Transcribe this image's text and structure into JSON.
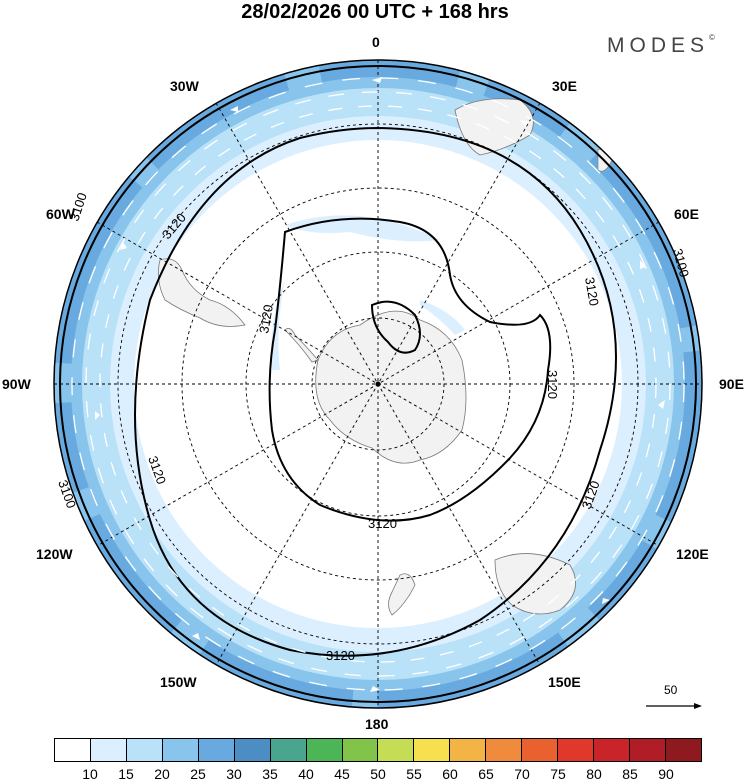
{
  "header": {
    "title": "28/02/2026  00 UTC  + 168 hrs",
    "brand": "MODES",
    "brand_mark": "©"
  },
  "map": {
    "projection": "south-polar-stereographic",
    "longitude_labels": {
      "top": "0",
      "bottom": "180",
      "left": "90W",
      "right": "90E",
      "n30w": "30W",
      "n30e": "30E",
      "n60w": "60W",
      "n60e": "60E",
      "n120w": "120W",
      "n120e": "120E",
      "n150w": "150W",
      "n150e": "150E"
    },
    "contours": {
      "c1": "3100",
      "c2": "3100",
      "c3": "3100",
      "c4": "3120",
      "c5": "3120",
      "c6": "3120",
      "c7": "3120",
      "c8": "3120",
      "c9": "3120",
      "c10": "3120",
      "c11": "3120",
      "c12": "3120"
    },
    "reference_vector": "50",
    "colors": {
      "land": "#f2f2f2",
      "contour": "#000000",
      "vector": "#ffffff"
    }
  },
  "colorbar": {
    "colors": [
      "#ffffff",
      "#dcefff",
      "#b9e1f7",
      "#88c4ec",
      "#68aadf",
      "#4c8ec4",
      "#4aa58f",
      "#4cb656",
      "#82c44a",
      "#c5dc55",
      "#f6e04f",
      "#f3b446",
      "#f08a3c",
      "#ea6130",
      "#e0392b",
      "#c9242a",
      "#b01d27",
      "#8e1a1f"
    ],
    "tick_labels": [
      "10",
      "15",
      "20",
      "25",
      "30",
      "35",
      "40",
      "45",
      "50",
      "55",
      "60",
      "65",
      "70",
      "75",
      "80",
      "85",
      "90"
    ]
  }
}
